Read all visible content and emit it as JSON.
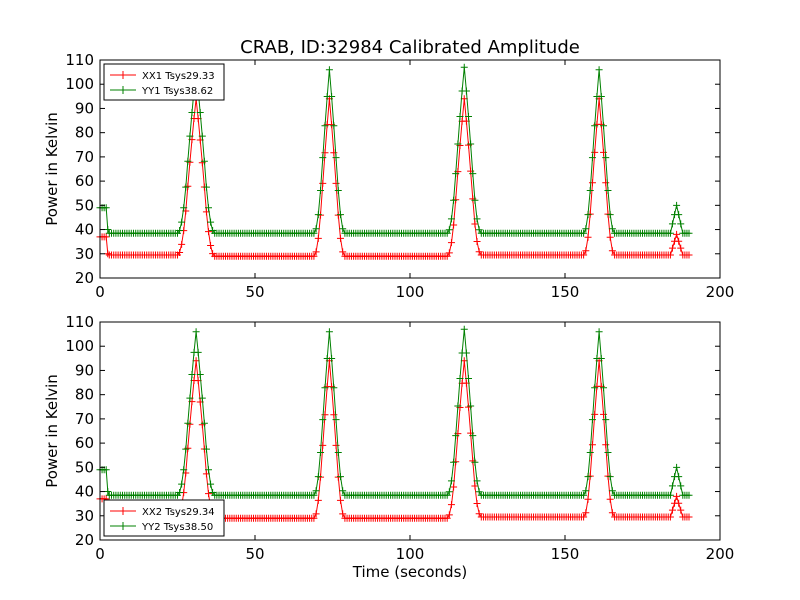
{
  "chart_data": {
    "title": "CRAB, ID:32984 Calibrated Amplitude",
    "type": "line",
    "panels": [
      {
        "ylabel": "Power in Kelvin",
        "xlabel": "",
        "xlim": [
          0,
          200
        ],
        "ylim": [
          20,
          110
        ],
        "xticks": [
          "0",
          "50",
          "100",
          "150",
          "200"
        ],
        "yticks": [
          "20",
          "30",
          "40",
          "50",
          "60",
          "70",
          "80",
          "90",
          "100",
          "110"
        ],
        "legend_position": "top-left",
        "series": [
          {
            "name": "XX1 Tsys29.33",
            "color": "#ff0000",
            "x": [
              0,
              2,
              2.5,
              3,
              25,
              31,
              37,
              69,
              74,
              79,
              112,
              117.5,
              123,
              156,
              161,
              166,
              184,
              186,
              188,
              190
            ],
            "y": [
              37,
              37,
              30,
              29.5,
              29.5,
              94,
              29,
              29,
              94,
              29,
              29,
              94,
              29.5,
              29.5,
              94,
              29.5,
              29.5,
              38,
              29.5,
              29.5
            ]
          },
          {
            "name": "YY1 Tsys38.62",
            "color": "#008000",
            "x": [
              0,
              2,
              2.5,
              3,
              25,
              31,
              37,
              69,
              74,
              79,
              112,
              117.5,
              123,
              156,
              161,
              166,
              184,
              186,
              188,
              190
            ],
            "y": [
              49,
              49,
              40,
              38.5,
              38.5,
              106,
              38.5,
              38.5,
              106,
              38.5,
              38.5,
              107,
              38.5,
              38.5,
              106,
              38.5,
              38.5,
              50,
              38.5,
              38.5
            ]
          }
        ]
      },
      {
        "ylabel": "Power in Kelvin",
        "xlabel": "Time (seconds)",
        "xlim": [
          0,
          200
        ],
        "ylim": [
          20,
          110
        ],
        "xticks": [
          "0",
          "50",
          "100",
          "150",
          "200"
        ],
        "yticks": [
          "20",
          "30",
          "40",
          "50",
          "60",
          "70",
          "80",
          "90",
          "100",
          "110"
        ],
        "legend_position": "bottom-left",
        "series": [
          {
            "name": "XX2 Tsys29.34",
            "color": "#ff0000",
            "x": [
              0,
              2,
              2.5,
              3,
              25,
              31,
              37,
              69,
              74,
              79,
              112,
              117.5,
              123,
              156,
              161,
              166,
              184,
              186,
              188,
              190
            ],
            "y": [
              37,
              37,
              30,
              29.5,
              29.5,
              94,
              29,
              29,
              94,
              29,
              29,
              94,
              29.5,
              29.5,
              94,
              29.5,
              29.5,
              38,
              29.5,
              29.5
            ]
          },
          {
            "name": "YY2 Tsys38.50",
            "color": "#008000",
            "x": [
              0,
              2,
              2.5,
              3,
              25,
              31,
              37,
              69,
              74,
              79,
              112,
              117.5,
              123,
              156,
              161,
              166,
              184,
              186,
              188,
              190
            ],
            "y": [
              49,
              49,
              40,
              38.5,
              38.5,
              106,
              38.5,
              38.5,
              106,
              38.5,
              38.5,
              107,
              38.5,
              38.5,
              106,
              38.5,
              38.5,
              50,
              38.5,
              38.5
            ]
          }
        ]
      }
    ]
  }
}
